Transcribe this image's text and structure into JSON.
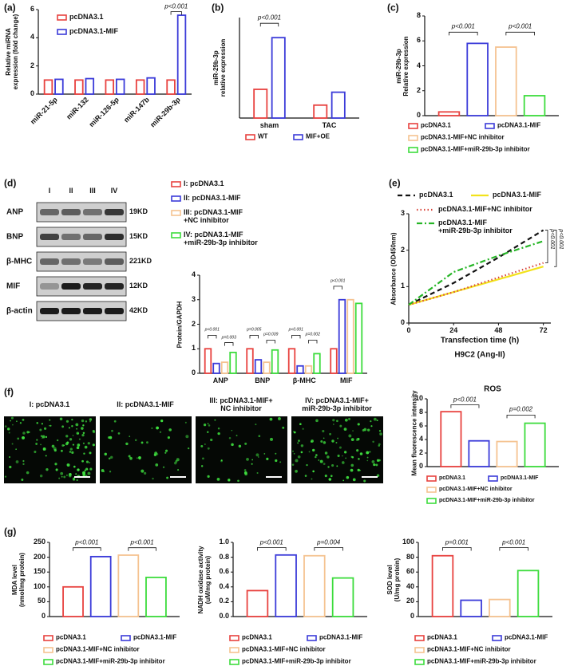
{
  "chart_data": [
    {
      "type": "bar",
      "label": "(a)",
      "ylabel": "Relative miRNA\nexpression (fold change)",
      "categories": [
        "miR-21-5p",
        "miR-132",
        "miR-126-5p",
        "miR-147b",
        "miR-29b-3p"
      ],
      "series": [
        {
          "name": "pcDNA3.1",
          "color": "#e8423f",
          "values": [
            1.0,
            1.0,
            1.0,
            1.0,
            1.0
          ]
        },
        {
          "name": "pcDNA3.1-MIF",
          "color": "#3b3bd9",
          "values": [
            1.05,
            1.1,
            1.05,
            1.15,
            5.6
          ]
        }
      ],
      "ylim": [
        0,
        6
      ],
      "yticks": [
        0,
        2,
        4,
        6
      ],
      "annotations": [
        "p<0.001"
      ]
    },
    {
      "type": "bar",
      "label": "(b)",
      "ylabel": "miR-29b-3p\nrelative expression",
      "categories": [
        "sham",
        "TAC"
      ],
      "series": [
        {
          "name": "WT",
          "color": "#e8423f",
          "values": [
            1.0,
            0.45
          ]
        },
        {
          "name": "MIF+OE",
          "color": "#3b3bd9",
          "values": [
            2.8,
            0.9
          ]
        }
      ],
      "ylim": [
        0,
        3.5
      ],
      "annotations": [
        "p<0.001"
      ]
    },
    {
      "type": "bar",
      "label": "(c)",
      "ylabel": "miR-29b-3p\nRelative expression",
      "categories": [
        null
      ],
      "series": [
        {
          "name": "pcDNA3.1",
          "color": "#e8423f",
          "values": [
            0.3
          ]
        },
        {
          "name": "pcDNA3.1-MIF",
          "color": "#3b3bd9",
          "values": [
            5.8
          ]
        },
        {
          "name": "pcDNA3.1-MIF+NC inhibitor",
          "color": "#f5c391",
          "values": [
            5.5
          ]
        },
        {
          "name": "pcDNA3.1-MIF+miR-29b-3p inhibitor",
          "color": "#3ddc3d",
          "values": [
            1.6
          ]
        }
      ],
      "ylim": [
        0,
        8
      ],
      "yticks": [
        0,
        2,
        4,
        6,
        8
      ],
      "annotations": [
        "p<0.001",
        "p<0.001"
      ]
    },
    {
      "type": "bar",
      "label": "(d)",
      "ylabel": "Protein/GAPDH",
      "categories": [
        "ANP",
        "BNP",
        "β-MHC",
        "MIF"
      ],
      "series": [
        {
          "name": "I: pcDNA3.1",
          "color": "#e8423f",
          "values": [
            1.0,
            1.0,
            1.0,
            1.0
          ]
        },
        {
          "name": "II: pcDNA3.1-MIF",
          "color": "#3b3bd9",
          "values": [
            0.4,
            0.55,
            0.3,
            3.0
          ]
        },
        {
          "name": "III: pcDNA3.1-MIF\n+NC inhibitor",
          "color": "#f5c391",
          "values": [
            0.45,
            0.45,
            0.3,
            3.0
          ]
        },
        {
          "name": "IV: pcDNA3.1-MIF\n+miR-29b-3p inhibitor",
          "color": "#3ddc3d",
          "values": [
            0.85,
            0.95,
            0.8,
            2.85
          ]
        }
      ],
      "ylim": [
        0,
        4
      ],
      "yticks": [
        0,
        1,
        2,
        3,
        4
      ],
      "annotations": [
        "p<0.001",
        "p=0.003",
        "p=0.005",
        "p=0.039",
        "p<0.001",
        "p=0.002",
        "p<0.001"
      ]
    },
    {
      "type": "line",
      "label": "(e)",
      "xlabel": "Transfection time (h)",
      "subtitle": "H9C2 (Ang-II)",
      "ylabel": "Absorbance (OD450nm)",
      "x": [
        0,
        24,
        48,
        72
      ],
      "series": [
        {
          "name": "pcDNA3.1",
          "color": "#111111",
          "style": "dashed",
          "values": [
            0.5,
            1.1,
            1.8,
            2.55
          ]
        },
        {
          "name": "pcDNA3.1-MIF",
          "color": "#f2e21c",
          "style": "solid",
          "values": [
            0.5,
            0.85,
            1.2,
            1.55
          ]
        },
        {
          "name": "pcDNA3.1-MIF+NC inhibitor",
          "color": "#d9443a",
          "style": "dotted",
          "values": [
            0.5,
            0.85,
            1.25,
            1.65
          ]
        },
        {
          "name": "pcDNA3.1-MIF\n+miR-29b-3p inhibitor",
          "color": "#25b525",
          "style": "dashdot",
          "values": [
            0.5,
            1.4,
            1.85,
            2.25
          ]
        }
      ],
      "xlim": [
        0,
        76
      ],
      "xticks": [
        0,
        24,
        48,
        72
      ],
      "ylim": [
        0,
        3
      ],
      "yticks": [
        0,
        1,
        2,
        3
      ],
      "annotations": [
        "p<0.001",
        "p<0.001"
      ]
    },
    {
      "type": "bar",
      "title": "ROS",
      "ylabel": "Mean fluorescence intensity",
      "categories": [
        null
      ],
      "series": [
        {
          "name": "pcDNA3.1",
          "color": "#e8423f",
          "values": [
            8.1
          ]
        },
        {
          "name": "pcDNA3.1-MIF",
          "color": "#3b3bd9",
          "values": [
            3.8
          ]
        },
        {
          "name": "pcDNA3.1-MIF+NC inhibitor",
          "color": "#f5c391",
          "values": [
            3.7
          ]
        },
        {
          "name": "pcDNA3.1-MIF+miR-29b-3p inhibitor",
          "color": "#3ddc3d",
          "values": [
            6.4
          ]
        }
      ],
      "ylim": [
        0,
        10
      ],
      "yticks": [
        0,
        2,
        4,
        6,
        8,
        10
      ],
      "annotations": [
        "p<0.001",
        "p=0.002"
      ]
    },
    {
      "type": "bar",
      "label": "(g)",
      "ylabel": "MDA level\n(nmol/mg protein)",
      "categories": [
        null
      ],
      "series": [
        {
          "name": "pcDNA3.1",
          "color": "#e8423f",
          "values": [
            100
          ]
        },
        {
          "name": "pcDNA3.1-MIF",
          "color": "#3b3bd9",
          "values": [
            202
          ]
        },
        {
          "name": "pcDNA3.1-MIF+NC inhibitor",
          "color": "#f5c391",
          "values": [
            207
          ]
        },
        {
          "name": "pcDNA3.1-MIF+miR-29b-3p inhibitor",
          "color": "#3ddc3d",
          "values": [
            132
          ]
        }
      ],
      "ylim": [
        0,
        250
      ],
      "yticks": [
        0,
        50,
        100,
        150,
        200,
        250
      ],
      "annotations": [
        "p<0.001",
        "p<0.001"
      ]
    },
    {
      "type": "bar",
      "ylabel": "NADH oxidase activity\n(uM/mg protein)",
      "categories": [
        null
      ],
      "series": [
        {
          "name": "pcDNA3.1",
          "color": "#e8423f",
          "values": [
            0.35
          ]
        },
        {
          "name": "pcDNA3.1-MIF",
          "color": "#3b3bd9",
          "values": [
            0.83
          ]
        },
        {
          "name": "pcDNA3.1-MIF+NC inhibitor",
          "color": "#f5c391",
          "values": [
            0.82
          ]
        },
        {
          "name": "pcDNA3.1-MIF+miR-29b-3p inhibitor",
          "color": "#3ddc3d",
          "values": [
            0.52
          ]
        }
      ],
      "ylim": [
        0,
        1
      ],
      "yticks": [
        {
          "value": 0,
          "label": "0.0"
        },
        0.2,
        0.4,
        0.6,
        0.8,
        {
          "value": 1,
          "label": "1.0"
        }
      ],
      "annotations": [
        "p<0.001",
        "p=0.004"
      ]
    },
    {
      "type": "bar",
      "ylabel": "SOD level\n(U/mg protein)",
      "categories": [
        null
      ],
      "series": [
        {
          "name": "pcDNA3.1",
          "color": "#e8423f",
          "values": [
            82
          ]
        },
        {
          "name": "pcDNA3.1-MIF",
          "color": "#3b3bd9",
          "values": [
            22
          ]
        },
        {
          "name": "pcDNA3.1-MIF+NC inhibitor",
          "color": "#f5c391",
          "values": [
            23
          ]
        },
        {
          "name": "pcDNA3.1-MIF+miR-29b-3p inhibitor",
          "color": "#3ddc3d",
          "values": [
            62
          ]
        }
      ],
      "ylim": [
        0,
        100
      ],
      "yticks": [
        0,
        20,
        40,
        60,
        80,
        100
      ],
      "annotations": [
        "p=0.001",
        "p<0.001"
      ]
    }
  ],
  "blot": {
    "lanes": [
      "I",
      "II",
      "III",
      "IV"
    ],
    "rows": [
      {
        "name": "ANP",
        "size": "19KD"
      },
      {
        "name": "BNP",
        "size": "15KD"
      },
      {
        "name": "β-MHC",
        "size": "221KD"
      },
      {
        "name": "MIF",
        "size": "12KD"
      },
      {
        "name": "β-actin",
        "size": "42KD"
      }
    ]
  },
  "images": {
    "label": "(f)",
    "panels": [
      "I: pcDNA3.1",
      "II: pcDNA3.1-MIF",
      "III: pcDNA3.1-MIF+\nNC inhibitor",
      "IV: pcDNA3.1-MIF+\nmiR-29b-3p inhibitor"
    ]
  }
}
